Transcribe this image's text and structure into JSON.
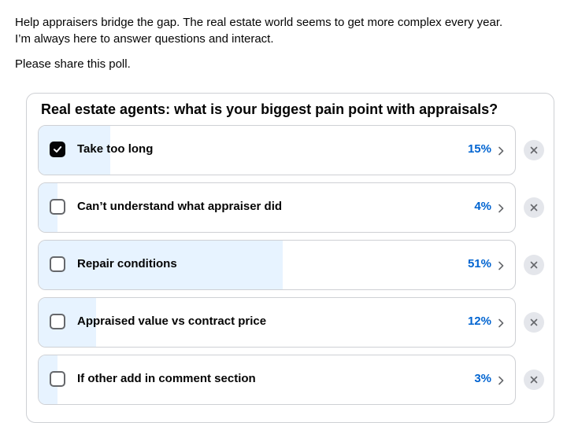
{
  "post": {
    "line1": "Help appraisers bridge the gap.  The real estate world seems to get more complex every year.",
    "line2": "I’m always here to answer questions and interact.",
    "line3": "Please share this poll."
  },
  "poll": {
    "question": "Real estate agents: what is your biggest pain point with appraisals?",
    "options": [
      {
        "label": "Take too long",
        "percent": 15,
        "percent_label": "15%",
        "checked": true
      },
      {
        "label": "Can’t understand what appraiser did",
        "percent": 4,
        "percent_label": "4%",
        "checked": false
      },
      {
        "label": "Repair conditions",
        "percent": 51,
        "percent_label": "51%",
        "checked": false
      },
      {
        "label": "Appraised value vs contract price",
        "percent": 12,
        "percent_label": "12%",
        "checked": false
      },
      {
        "label": "If other add in comment section",
        "percent": 3,
        "percent_label": "3%",
        "checked": false
      }
    ]
  },
  "icons": {
    "checkmark": "check-icon",
    "chevron": "chevron-right-icon",
    "remove": "close-icon"
  },
  "colors": {
    "accent": "#0064d1",
    "bar_fill": "#e7f3ff"
  }
}
